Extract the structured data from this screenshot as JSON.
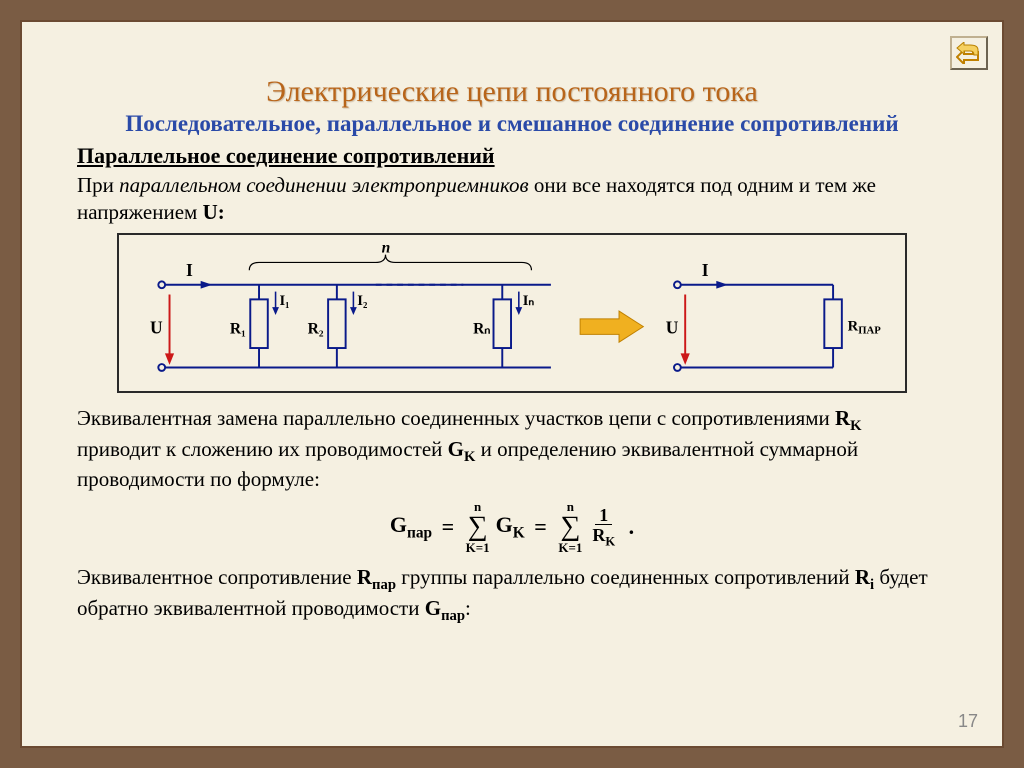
{
  "nav": {
    "icon": "return-arrow"
  },
  "title": "Электрические цепи постоянного тока",
  "subtitle": "Последовательное, параллельное и смешанное соединение сопротивлений",
  "section_head": "Параллельное соединение сопротивлений",
  "intro_html": "При <i>параллельном соединении электроприемников</i> они все находятся под одним и тем же напряжением <b>U:</b>",
  "after_diagram_html": "Эквивалентная замена параллельно соединенных участков цепи с сопротивлениями <b>R<sub>K</sub></b> приводит к сложению их проводимостей <b>G<sub>K</sub></b> и определению эквивалентной суммарной проводимости по формуле:",
  "closing_html": "Эквивалентное сопротивление <b>R<sub>пар</sub></b> группы параллельно соединенных сопротивлений <b>R<sub>i</sub></b> будет обратно эквивалентной проводимости <b>G<sub>пар</sub></b>:",
  "formula": {
    "lhs": "G<sub>пар</sub>",
    "sum_top": "n",
    "sum_bot": "K=1",
    "term1": "G<sub>K</sub>",
    "frac_num": "1",
    "frac_den": "R<sub>K</sub>"
  },
  "circuit": {
    "labels": {
      "I": "I",
      "U": "U",
      "n": "n",
      "I1": "I₁",
      "I2": "I₂",
      "In": "Iₙ",
      "R1": "R₁",
      "R2": "R₂",
      "Rn": "Rₙ",
      "Rpar": "Rпар"
    },
    "colors": {
      "wire": "#0a1a8a",
      "voltage_arrow": "#cc1818",
      "transform_arrow": "#f0b020",
      "border": "#2a2a2a",
      "bg": "#f5f0e1"
    }
  },
  "page_number": "17"
}
